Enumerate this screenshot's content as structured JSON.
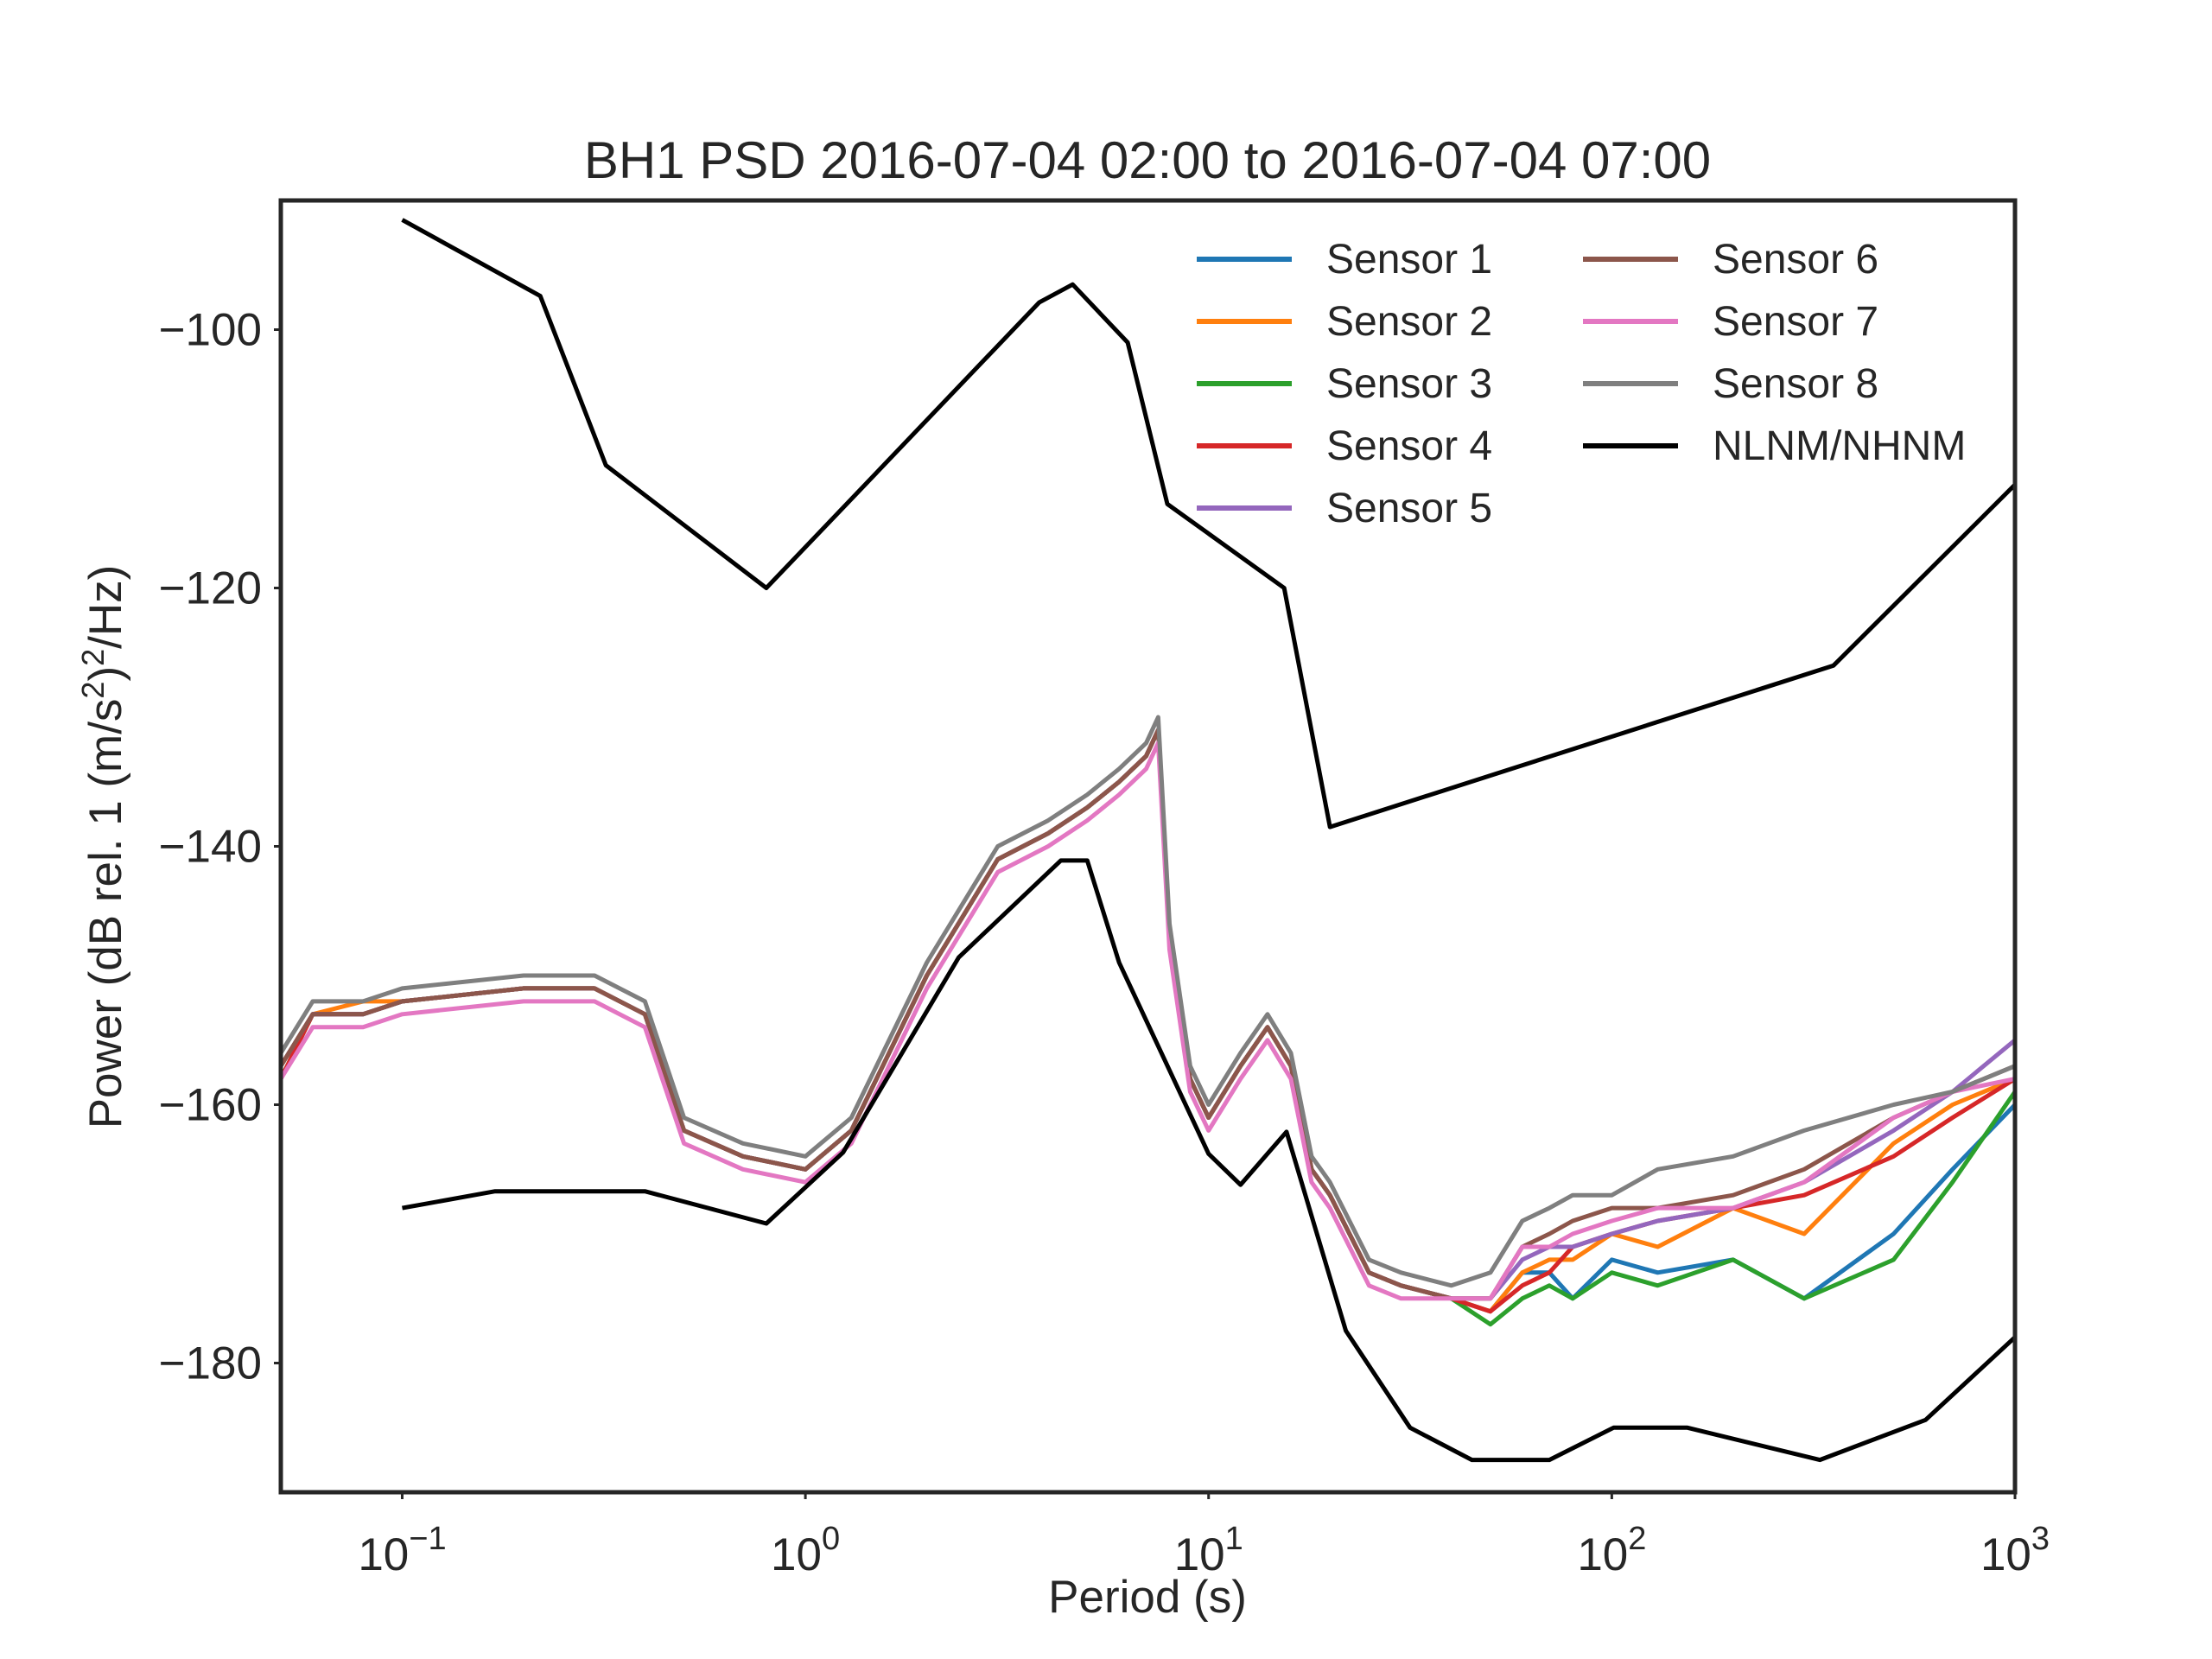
{
  "chart_data": {
    "type": "line",
    "title": "BH1 PSD 2016-07-04 02:00 to 2016-07-04 07:00",
    "xlabel": "Period (s)",
    "ylabel_pre": "Power (dB rel. 1 (m/s",
    "ylabel_sup1": "2",
    "ylabel_mid": ")",
    "ylabel_sup2": "2",
    "ylabel_post": "/Hz)",
    "xscale": "log",
    "xlim": [
      0.05,
      1000
    ],
    "ylim": [
      -190,
      -90
    ],
    "grid": false,
    "legend_position": "upper-right",
    "xticks": [
      {
        "value": 0.1,
        "base": "10",
        "exp": "−1"
      },
      {
        "value": 1,
        "base": "10",
        "exp": "0"
      },
      {
        "value": 10,
        "base": "10",
        "exp": "1"
      },
      {
        "value": 100,
        "base": "10",
        "exp": "2"
      },
      {
        "value": 1000,
        "base": "10",
        "exp": "3"
      }
    ],
    "yticks": [
      {
        "value": -100,
        "label": "−100"
      },
      {
        "value": -120,
        "label": "−120"
      },
      {
        "value": -140,
        "label": "−140"
      },
      {
        "value": -160,
        "label": "−160"
      },
      {
        "value": -180,
        "label": "−180"
      }
    ],
    "series": [
      {
        "name": "Sensor 1",
        "color": "#1f77b4",
        "x": [
          0.05,
          0.06,
          0.08,
          0.1,
          0.2,
          0.3,
          0.4,
          0.5,
          0.7,
          1.0,
          1.3,
          2,
          3,
          4,
          5,
          6,
          7,
          7.5,
          8,
          9,
          10,
          12,
          14,
          16,
          18,
          20,
          25,
          30,
          40,
          50,
          60,
          70,
          80,
          100,
          130,
          200,
          300,
          500,
          700,
          1000
        ],
        "y": [
          -157,
          -153,
          -153,
          -152,
          -151,
          -151,
          -153,
          -162,
          -164,
          -165,
          -162,
          -150,
          -141,
          -139,
          -137,
          -135,
          -133,
          -131,
          -147,
          -158,
          -161,
          -157,
          -154,
          -157,
          -165,
          -167,
          -173,
          -174,
          -175,
          -176,
          -173,
          -173,
          -175,
          -172,
          -173,
          -172,
          -175,
          -170,
          -165,
          -160
        ]
      },
      {
        "name": "Sensor 2",
        "color": "#ff7f0e",
        "x": [
          0.05,
          0.06,
          0.08,
          0.1,
          0.2,
          0.3,
          0.4,
          0.5,
          0.7,
          1.0,
          1.3,
          2,
          3,
          4,
          5,
          6,
          7,
          7.5,
          8,
          9,
          10,
          12,
          14,
          16,
          18,
          20,
          25,
          30,
          40,
          50,
          60,
          70,
          80,
          100,
          130,
          200,
          300,
          500,
          700,
          1000
        ],
        "y": [
          -157,
          -153,
          -152,
          -152,
          -151,
          -151,
          -153,
          -162,
          -164,
          -165,
          -162,
          -150,
          -141,
          -139,
          -137,
          -135,
          -133,
          -131,
          -147,
          -158,
          -161,
          -157,
          -154,
          -157,
          -165,
          -167,
          -173,
          -174,
          -175,
          -176,
          -173,
          -172,
          -172,
          -170,
          -171,
          -168,
          -170,
          -163,
          -160,
          -158
        ]
      },
      {
        "name": "Sensor 3",
        "color": "#2ca02c",
        "x": [
          0.05,
          0.06,
          0.08,
          0.1,
          0.2,
          0.3,
          0.4,
          0.5,
          0.7,
          1.0,
          1.3,
          2,
          3,
          4,
          5,
          6,
          7,
          7.5,
          8,
          9,
          10,
          12,
          14,
          16,
          18,
          20,
          25,
          30,
          40,
          50,
          60,
          70,
          80,
          100,
          130,
          200,
          300,
          500,
          700,
          1000
        ],
        "y": [
          -158,
          -153,
          -153,
          -152,
          -151,
          -151,
          -153,
          -162,
          -164,
          -165,
          -162,
          -150,
          -141,
          -139,
          -137,
          -135,
          -133,
          -131,
          -147,
          -158,
          -161,
          -157,
          -154,
          -157,
          -165,
          -167,
          -173,
          -174,
          -175,
          -177,
          -175,
          -174,
          -175,
          -173,
          -174,
          -172,
          -175,
          -172,
          -166,
          -159
        ]
      },
      {
        "name": "Sensor 4",
        "color": "#d62728",
        "x": [
          0.05,
          0.06,
          0.08,
          0.1,
          0.2,
          0.3,
          0.4,
          0.5,
          0.7,
          1.0,
          1.3,
          2,
          3,
          4,
          5,
          6,
          7,
          7.5,
          8,
          9,
          10,
          12,
          14,
          16,
          18,
          20,
          25,
          30,
          40,
          50,
          60,
          70,
          80,
          100,
          130,
          200,
          300,
          500,
          700,
          1000
        ],
        "y": [
          -158,
          -153,
          -153,
          -152,
          -151,
          -151,
          -153,
          -162,
          -164,
          -165,
          -162,
          -150,
          -141,
          -139,
          -137,
          -135,
          -133,
          -131,
          -147,
          -158,
          -161,
          -157,
          -154,
          -157,
          -165,
          -167,
          -173,
          -174,
          -175,
          -176,
          -174,
          -173,
          -171,
          -170,
          -169,
          -168,
          -167,
          -164,
          -161,
          -158
        ]
      },
      {
        "name": "Sensor 5",
        "color": "#9467bd",
        "x": [
          0.05,
          0.06,
          0.08,
          0.1,
          0.2,
          0.3,
          0.4,
          0.5,
          0.7,
          1.0,
          1.3,
          2,
          3,
          4,
          5,
          6,
          7,
          7.5,
          8,
          9,
          10,
          12,
          14,
          16,
          18,
          20,
          25,
          30,
          40,
          50,
          60,
          70,
          80,
          100,
          130,
          200,
          300,
          500,
          700,
          1000
        ],
        "y": [
          -157,
          -153,
          -153,
          -152,
          -151,
          -151,
          -153,
          -162,
          -164,
          -165,
          -162,
          -150,
          -141,
          -139,
          -137,
          -135,
          -133,
          -131,
          -147,
          -158,
          -161,
          -157,
          -154,
          -157,
          -165,
          -167,
          -173,
          -174,
          -175,
          -175,
          -172,
          -171,
          -171,
          -170,
          -169,
          -168,
          -166,
          -162,
          -159,
          -155
        ]
      },
      {
        "name": "Sensor 6",
        "color": "#8c564b",
        "x": [
          0.05,
          0.06,
          0.08,
          0.1,
          0.2,
          0.3,
          0.4,
          0.5,
          0.7,
          1.0,
          1.3,
          2,
          3,
          4,
          5,
          6,
          7,
          7.5,
          8,
          9,
          10,
          12,
          14,
          16,
          18,
          20,
          25,
          30,
          40,
          50,
          60,
          70,
          80,
          100,
          130,
          200,
          300,
          500,
          700,
          1000
        ],
        "y": [
          -157,
          -153,
          -153,
          -152,
          -151,
          -151,
          -153,
          -162,
          -164,
          -165,
          -162,
          -150,
          -141,
          -139,
          -137,
          -135,
          -133,
          -131,
          -147,
          -158,
          -161,
          -157,
          -154,
          -157,
          -165,
          -167,
          -173,
          -174,
          -175,
          -175,
          -171,
          -170,
          -169,
          -168,
          -168,
          -167,
          -165,
          -161,
          -159,
          -157
        ]
      },
      {
        "name": "Sensor 7",
        "color": "#e377c2",
        "x": [
          0.05,
          0.06,
          0.08,
          0.1,
          0.2,
          0.3,
          0.4,
          0.5,
          0.7,
          1.0,
          1.3,
          2,
          3,
          4,
          5,
          6,
          7,
          7.5,
          8,
          9,
          10,
          12,
          14,
          16,
          18,
          20,
          25,
          30,
          40,
          50,
          60,
          70,
          80,
          100,
          130,
          200,
          300,
          500,
          700,
          1000
        ],
        "y": [
          -158,
          -154,
          -154,
          -153,
          -152,
          -152,
          -154,
          -163,
          -165,
          -166,
          -163,
          -151,
          -142,
          -140,
          -138,
          -136,
          -134,
          -132,
          -148,
          -159,
          -162,
          -158,
          -155,
          -158,
          -166,
          -168,
          -174,
          -175,
          -175,
          -175,
          -171,
          -171,
          -170,
          -169,
          -168,
          -168,
          -166,
          -161,
          -159,
          -158
        ]
      },
      {
        "name": "Sensor 8",
        "color": "#7f7f7f",
        "x": [
          0.05,
          0.06,
          0.08,
          0.1,
          0.2,
          0.3,
          0.4,
          0.5,
          0.7,
          1.0,
          1.3,
          2,
          3,
          4,
          5,
          6,
          7,
          7.5,
          8,
          9,
          10,
          12,
          14,
          16,
          18,
          20,
          25,
          30,
          40,
          50,
          60,
          70,
          80,
          100,
          130,
          200,
          300,
          500,
          700,
          1000
        ],
        "y": [
          -156,
          -152,
          -152,
          -151,
          -150,
          -150,
          -152,
          -161,
          -163,
          -164,
          -161,
          -149,
          -140,
          -138,
          -136,
          -134,
          -132,
          -130,
          -146,
          -157,
          -160,
          -156,
          -153,
          -156,
          -164,
          -166,
          -172,
          -173,
          -174,
          -173,
          -169,
          -168,
          -167,
          -167,
          -165,
          -164,
          -162,
          -160,
          -159,
          -157
        ]
      },
      {
        "name": "NLNM/NHNM",
        "color": "#000000",
        "x": [
          0.1,
          0.17,
          0.4,
          0.8,
          1.24,
          2.4,
          4.3,
          5,
          6,
          10,
          12,
          15.6,
          21.9,
          31.6,
          45,
          70,
          101,
          154,
          328,
          600,
          1000
        ],
        "y": [
          -168,
          -166.7,
          -166.7,
          -169.2,
          -163.7,
          -148.6,
          -141.1,
          -141.1,
          -149,
          -163.8,
          -166.2,
          -162.1,
          -177.5,
          -185,
          -187.5,
          -187.5,
          -185,
          -185,
          -187.5,
          -184.4,
          -178
        ],
        "x2": [
          0.1,
          0.22,
          0.32,
          0.8,
          3.8,
          4.6,
          6.3,
          7.9,
          15.4,
          20,
          354.8,
          1000
        ],
        "y2": [
          -91.5,
          -97.4,
          -110.5,
          -120,
          -97.9,
          -96.5,
          -101,
          -113.5,
          -120,
          -138.5,
          -126,
          -112
        ]
      }
    ]
  }
}
